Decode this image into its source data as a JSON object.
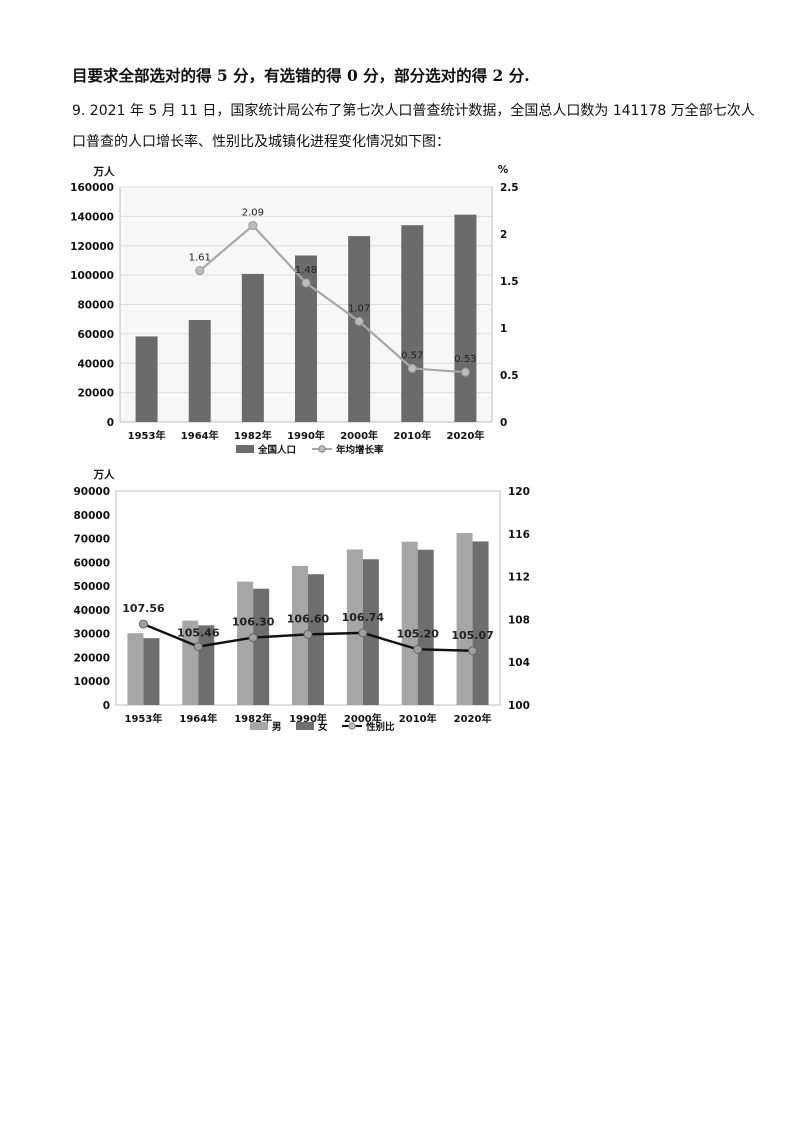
{
  "text": {
    "line1": "目要求全部选对的得 5 分，有选错的得 0 分，部分选对的得 2 分.",
    "para1": "9. 2021 年 5 月 11 日，国家统计局公布了第七次人口普查统计数据，全国总人口数为 141178 万全部七次人",
    "para2": "口普查的人口增长率、性别比及城镇化进程变化情况如下图："
  },
  "chart_data": [
    {
      "type": "bar",
      "categories": [
        "1953年",
        "1964年",
        "1982年",
        "1990年",
        "2000年",
        "2010年",
        "2020年"
      ],
      "y_unit": "万人",
      "y2_unit": "%",
      "ylim": [
        0,
        160000
      ],
      "y_ticks": [
        0,
        20000,
        40000,
        60000,
        80000,
        100000,
        120000,
        140000,
        160000
      ],
      "y2lim": [
        0,
        2.5
      ],
      "y2_ticks": [
        "0",
        "0.5",
        "1",
        "1.5",
        "2",
        "2.5"
      ],
      "series": [
        {
          "name": "全国人口",
          "kind": "bar",
          "color": "#6b6b6b",
          "values": [
            58260,
            69458,
            100818,
            113368,
            126583,
            133972,
            141178
          ]
        },
        {
          "name": "年均增长率",
          "kind": "line",
          "axis": "right",
          "color": "#a8a8a8",
          "values": [
            null,
            1.61,
            2.09,
            1.48,
            1.07,
            0.57,
            0.53
          ],
          "labels": [
            null,
            "1.61",
            "2.09",
            "1.48",
            "1.07",
            "0.57",
            "0.53"
          ]
        }
      ],
      "grid": true,
      "legend": "bottom"
    },
    {
      "type": "bar",
      "categories": [
        "1953年",
        "1964年",
        "1982年",
        "1990年",
        "2000年",
        "2010年",
        "2020年"
      ],
      "y_unit": "万人",
      "ylim": [
        0,
        90000
      ],
      "y_ticks": [
        0,
        10000,
        20000,
        30000,
        40000,
        50000,
        60000,
        70000,
        80000,
        90000
      ],
      "y2lim": [
        100,
        120
      ],
      "y2_ticks": [
        "100",
        "104",
        "108",
        "112",
        "116",
        "120"
      ],
      "series": [
        {
          "name": "男",
          "kind": "bar",
          "color": "#a6a6a6",
          "values": [
            30200,
            35500,
            51900,
            58500,
            65400,
            68700,
            72300
          ]
        },
        {
          "name": "女",
          "kind": "bar",
          "color": "#6e6e6e",
          "values": [
            28100,
            33500,
            48900,
            55000,
            61300,
            65300,
            68800
          ]
        },
        {
          "name": "性别比",
          "kind": "line",
          "axis": "right",
          "color": "#111111",
          "values": [
            107.56,
            105.46,
            106.3,
            106.6,
            106.74,
            105.2,
            105.07
          ],
          "labels": [
            "107.56",
            "105.46",
            "106.30",
            "106.60",
            "106.74",
            "105.20",
            "105.07"
          ]
        }
      ],
      "grid": false,
      "legend": "bottom"
    }
  ]
}
